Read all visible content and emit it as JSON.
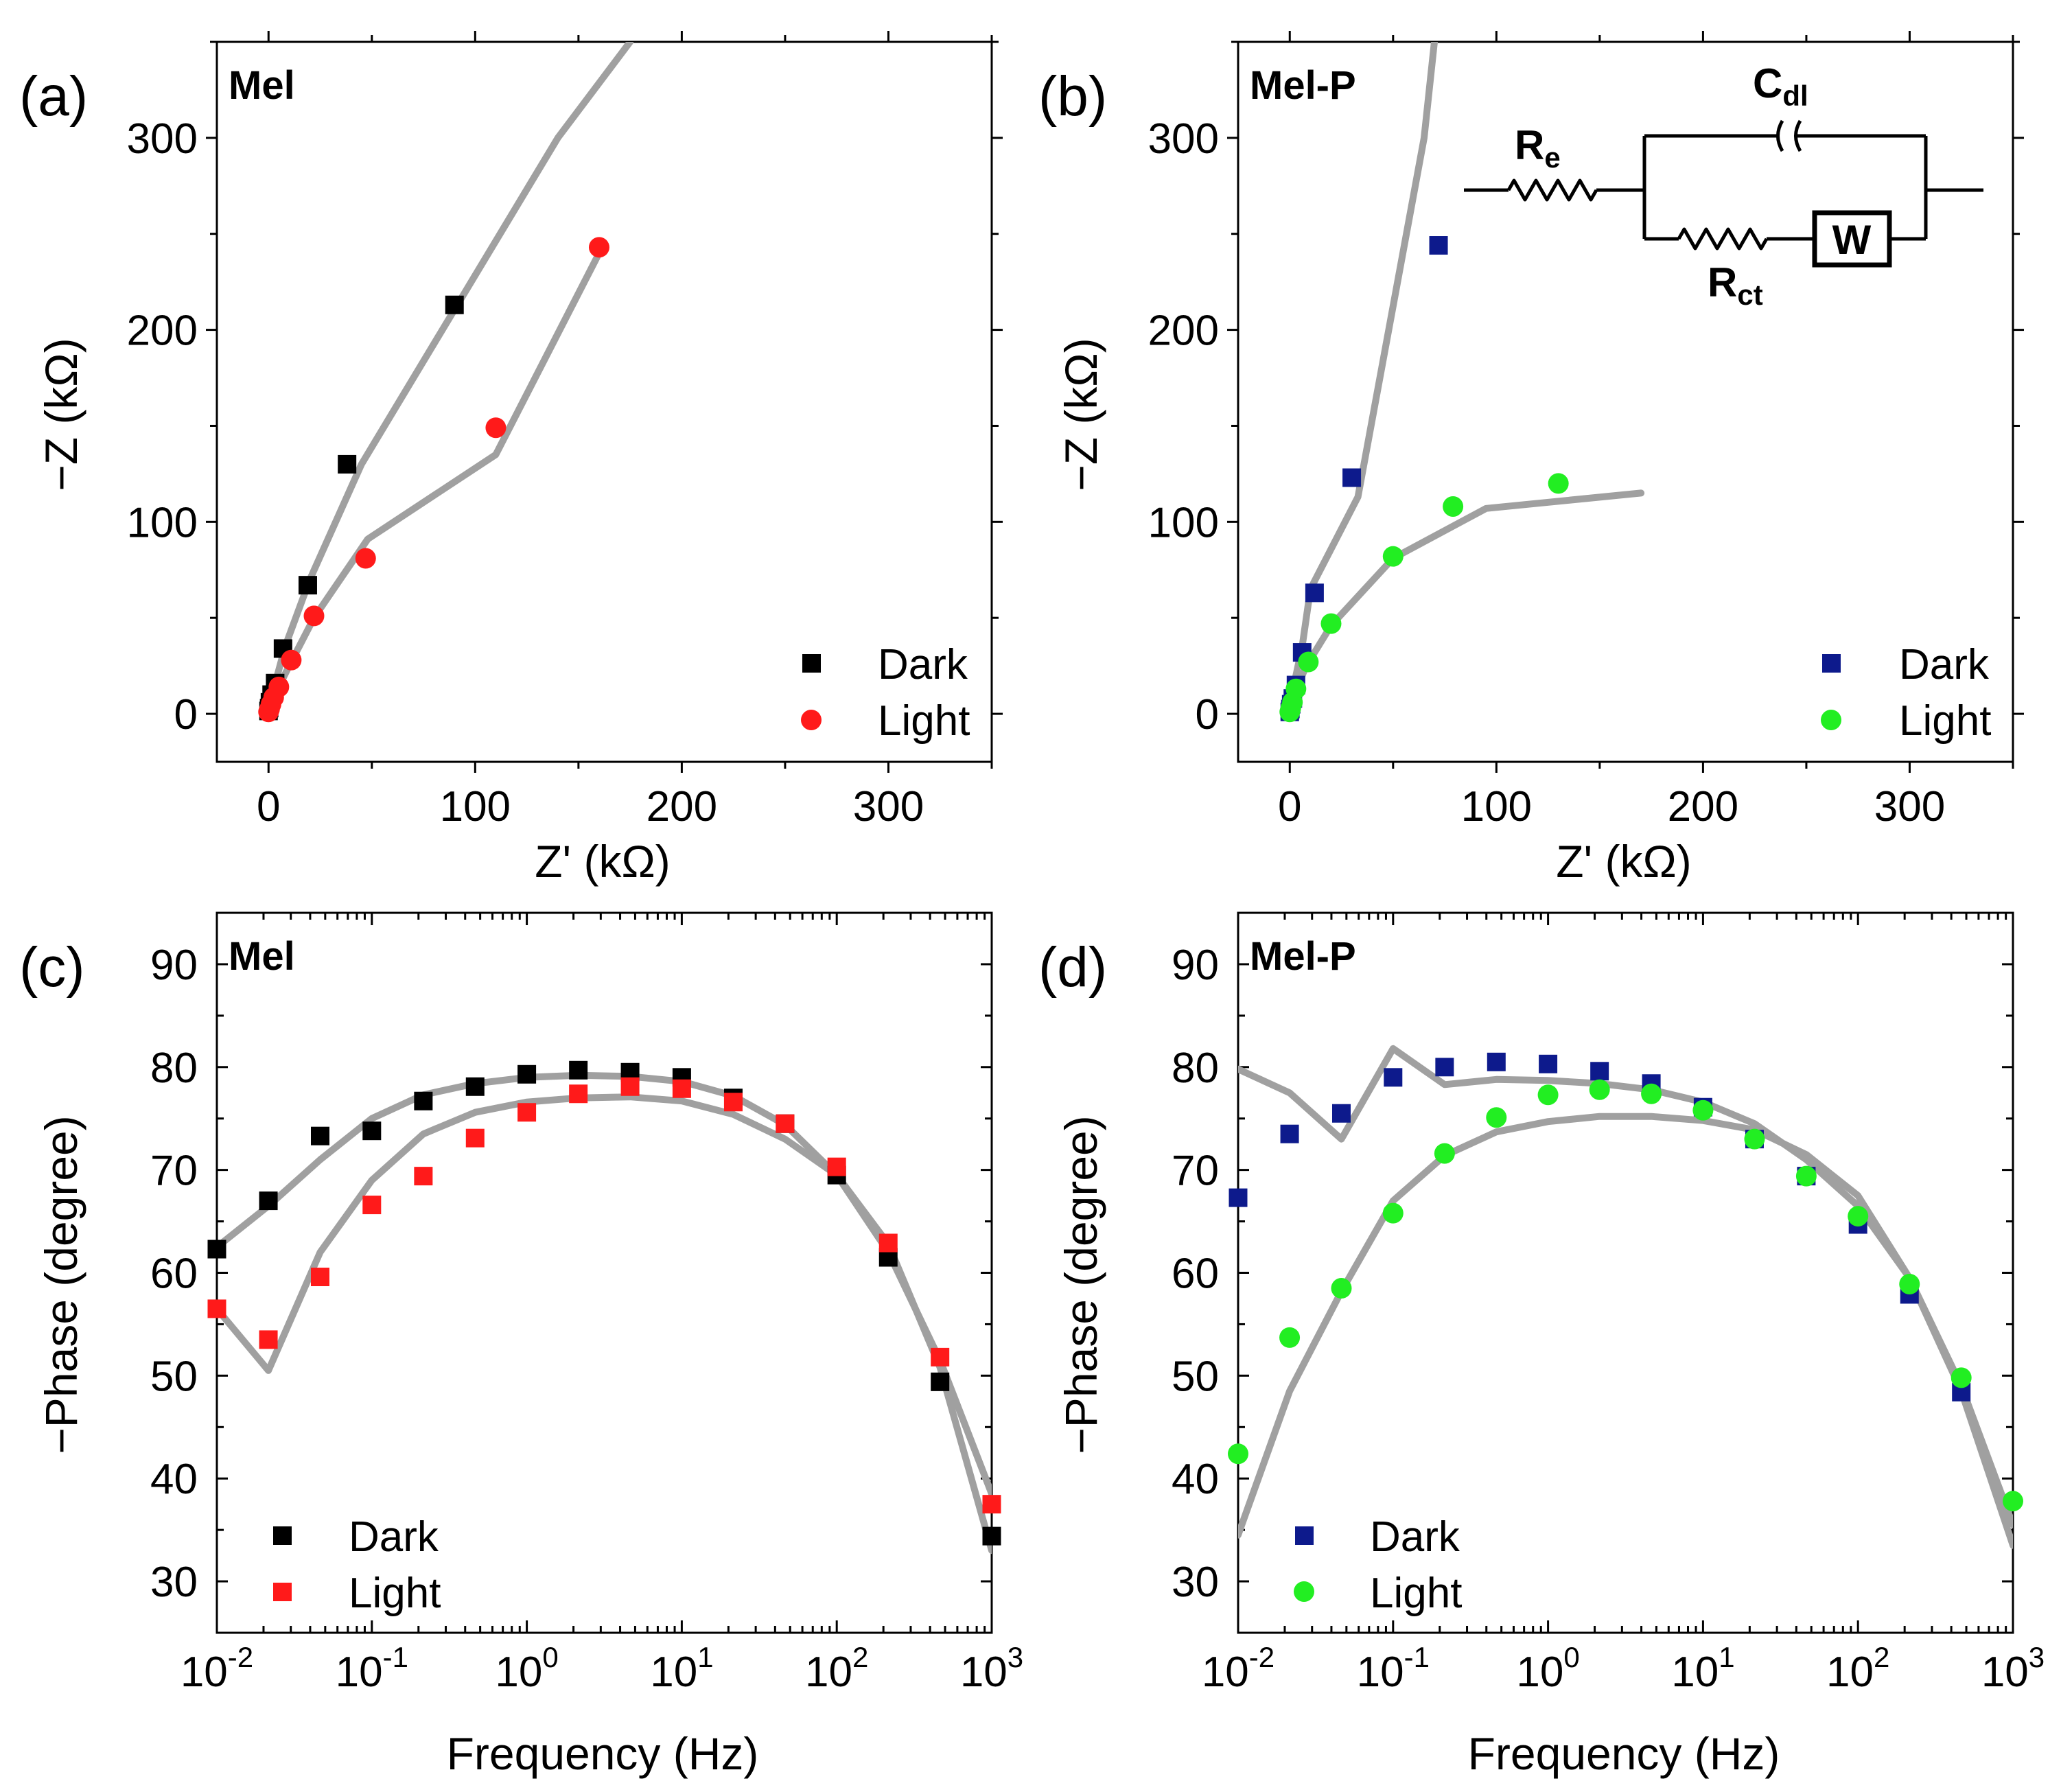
{
  "chart_data": [
    {
      "type": "scatter",
      "panel": "(a)",
      "sample": "Mel",
      "xlabel": "Z' (kΩ)",
      "ylabel": "−Z (kΩ)",
      "xscale": "linear",
      "xlim": [
        -25,
        350
      ],
      "ylim": [
        -25,
        350
      ],
      "xticks": [
        0,
        100,
        200,
        300
      ],
      "yticks": [
        0,
        100,
        200,
        300
      ],
      "xtick_labels": [
        "0",
        "100",
        "200",
        "300"
      ],
      "ytick_labels": [
        "0",
        "100",
        "200",
        "300"
      ],
      "legend_position": "bottom-right",
      "series": [
        {
          "name": "Dark",
          "marker": "square",
          "color": "#000000",
          "x": [
            0,
            0.3,
            0.7,
            1.5,
            3.2,
            7,
            19,
            38,
            90
          ],
          "y": [
            1.5,
            3,
            6,
            10,
            16,
            34,
            67,
            130,
            213
          ]
        },
        {
          "name": "Light",
          "marker": "circle",
          "color": "#ff1a1a",
          "x": [
            0,
            0.5,
            1.2,
            2.5,
            5,
            11,
            22,
            47,
            110,
            160
          ],
          "y": [
            1,
            2.5,
            5,
            8.5,
            14,
            28,
            51,
            81,
            149,
            243
          ]
        }
      ],
      "fits": [
        {
          "name": "Dark fit",
          "color": "#a0a0a0",
          "x": [
            0,
            1,
            3,
            8,
            20,
            45,
            140,
            175
          ],
          "y": [
            0,
            6,
            15,
            35,
            70,
            130,
            300,
            350
          ]
        },
        {
          "name": "Light fit",
          "color": "#a0a0a0",
          "x": [
            0,
            1,
            4,
            10,
            22,
            48,
            110,
            160
          ],
          "y": [
            0,
            5,
            12,
            25,
            50,
            91,
            135,
            240
          ]
        }
      ]
    },
    {
      "type": "scatter",
      "panel": "(b)",
      "sample": "Mel-P",
      "xlabel": "Z' (kΩ)",
      "ylabel": "−Z (kΩ)",
      "xscale": "linear",
      "xlim": [
        -25,
        350
      ],
      "ylim": [
        -25,
        350
      ],
      "xticks": [
        0,
        100,
        200,
        300
      ],
      "yticks": [
        0,
        100,
        200,
        300
      ],
      "xtick_labels": [
        "0",
        "100",
        "200",
        "300"
      ],
      "ytick_labels": [
        "0",
        "100",
        "200",
        "300"
      ],
      "legend_position": "bottom-right",
      "series": [
        {
          "name": "Dark",
          "marker": "square",
          "color": "#0d1a8c",
          "x": [
            0,
            0.3,
            0.7,
            1.5,
            3,
            6,
            12,
            30,
            72
          ],
          "y": [
            1,
            2.5,
            5,
            8,
            15,
            32,
            63,
            123,
            244
          ]
        },
        {
          "name": "Light",
          "marker": "circle",
          "color": "#22ee22",
          "x": [
            0,
            0.5,
            1.3,
            3,
            9,
            20,
            50,
            79,
            130
          ],
          "y": [
            1,
            3,
            6,
            13,
            27,
            47,
            82,
            108,
            120
          ]
        }
      ],
      "fits": [
        {
          "name": "Dark fit",
          "color": "#a0a0a0",
          "x": [
            0,
            2,
            6,
            10,
            33,
            65,
            70
          ],
          "y": [
            0,
            15,
            35,
            65,
            113,
            300,
            350
          ]
        },
        {
          "name": "Light fit",
          "color": "#a0a0a0",
          "x": [
            0,
            2,
            8,
            20,
            50,
            95,
            170
          ],
          "y": [
            0,
            10,
            25,
            46,
            81,
            107,
            115
          ]
        }
      ],
      "inset_circuit": {
        "resistor_label": "R",
        "resistor_sub": "e",
        "capacitor_label": "C",
        "capacitor_sub": "dl",
        "transfer_label": "R",
        "transfer_sub": "ct",
        "warburg_label": "W"
      }
    },
    {
      "type": "scatter",
      "panel": "(c)",
      "sample": "Mel",
      "xlabel": "Frequency (Hz)",
      "ylabel": "−Phase (degree)",
      "xscale": "log",
      "xlim": [
        0.01,
        1000
      ],
      "ylim": [
        25,
        95
      ],
      "yticks": [
        30,
        40,
        50,
        60,
        70,
        80,
        90
      ],
      "ytick_labels": [
        "30",
        "40",
        "50",
        "60",
        "70",
        "80",
        "90"
      ],
      "xtick_labels": [
        {
          "base": "10",
          "exp": "-2"
        },
        {
          "base": "10",
          "exp": "-1"
        },
        {
          "base": "10",
          "exp": "0"
        },
        {
          "base": "10",
          "exp": "1"
        },
        {
          "base": "10",
          "exp": "2"
        },
        {
          "base": "10",
          "exp": "3"
        }
      ],
      "legend_position": "bottom-left",
      "series": [
        {
          "name": "Dark",
          "marker": "square",
          "color": "#000000",
          "x": [
            0.01,
            0.0215,
            0.0464,
            0.1,
            0.215,
            0.464,
            1,
            2.15,
            4.64,
            10,
            21.5,
            46.4,
            100,
            215,
            464,
            1000
          ],
          "y": [
            62.3,
            67,
            73.3,
            73.8,
            76.7,
            78.1,
            79.3,
            79.7,
            79.5,
            79,
            77,
            74.5,
            69.5,
            61.5,
            49.4,
            34.4
          ]
        },
        {
          "name": "Light",
          "marker": "square",
          "color": "#ff1a1a",
          "x": [
            0.01,
            0.0215,
            0.0464,
            0.1,
            0.215,
            0.464,
            1,
            2.15,
            4.64,
            10,
            21.5,
            46.4,
            100,
            215,
            464,
            1000
          ],
          "y": [
            56.5,
            53.5,
            59.6,
            66.6,
            69.4,
            73.1,
            75.6,
            77.4,
            78.1,
            77.9,
            76.6,
            74.5,
            70.3,
            62.9,
            51.8,
            37.5
          ]
        }
      ],
      "fits": [
        {
          "name": "Dark fit",
          "color": "#a0a0a0",
          "x": [
            0.01,
            0.0215,
            0.0464,
            0.1,
            0.215,
            0.464,
            1,
            2.15,
            4.64,
            10,
            21.5,
            46.4,
            100,
            215,
            464,
            1000
          ],
          "y": [
            62.5,
            66.5,
            71,
            75,
            77.3,
            78.4,
            79,
            79.2,
            79.1,
            78.6,
            77.2,
            74.4,
            69.5,
            62,
            51.5,
            38.5
          ]
        },
        {
          "name": "Light fit",
          "color": "#a0a0a0",
          "x": [
            0.01,
            0.0215,
            0.0464,
            0.1,
            0.215,
            0.464,
            1,
            2.15,
            4.64,
            10,
            21.5,
            46.4,
            100,
            215,
            464,
            1000
          ],
          "y": [
            56.5,
            50.5,
            62,
            69,
            73.5,
            75.6,
            76.6,
            77,
            77.1,
            76.7,
            75.4,
            73,
            69.5,
            62.8,
            50.8,
            33
          ]
        }
      ]
    },
    {
      "type": "scatter",
      "panel": "(d)",
      "sample": "Mel-P",
      "xlabel": "Frequency (Hz)",
      "ylabel": "−Phase (degree)",
      "xscale": "log",
      "xlim": [
        0.01,
        1000
      ],
      "ylim": [
        25,
        95
      ],
      "yticks": [
        30,
        40,
        50,
        60,
        70,
        80,
        90
      ],
      "ytick_labels": [
        "30",
        "40",
        "50",
        "60",
        "70",
        "80",
        "90"
      ],
      "xtick_labels": [
        {
          "base": "10",
          "exp": "-2"
        },
        {
          "base": "10",
          "exp": "-1"
        },
        {
          "base": "10",
          "exp": "0"
        },
        {
          "base": "10",
          "exp": "1"
        },
        {
          "base": "10",
          "exp": "2"
        },
        {
          "base": "10",
          "exp": "3"
        }
      ],
      "legend_position": "bottom-left",
      "series": [
        {
          "name": "Dark",
          "marker": "square",
          "color": "#0d1a8c",
          "x": [
            0.01,
            0.0215,
            0.0464,
            0.1,
            0.215,
            0.464,
            1,
            2.15,
            4.64,
            10,
            21.5,
            46.4,
            100,
            215,
            464
          ],
          "y": [
            67.3,
            73.5,
            75.5,
            79,
            80,
            80.5,
            80.3,
            79.6,
            78.4,
            76.1,
            73,
            69.4,
            64.7,
            57.9,
            48.4
          ]
        },
        {
          "name": "Light",
          "marker": "circle",
          "color": "#22ee22",
          "x": [
            0.01,
            0.0215,
            0.0464,
            0.1,
            0.215,
            0.464,
            1,
            2.15,
            4.64,
            10,
            21.5,
            46.4,
            100,
            215,
            464,
            1000
          ],
          "y": [
            42.4,
            53.7,
            58.5,
            65.8,
            71.6,
            75.1,
            77.3,
            77.8,
            77.4,
            75.8,
            73,
            69.4,
            65.5,
            58.9,
            49.8,
            37.8
          ]
        }
      ],
      "fits": [
        {
          "name": "Dark fit",
          "color": "#a0a0a0",
          "x": [
            0.01,
            0.0215,
            0.0464,
            0.1,
            0.215,
            0.464,
            1,
            2.15,
            4.64,
            10,
            21.5,
            46.4,
            100,
            215,
            464,
            1000
          ],
          "y": [
            79.8,
            77.5,
            73,
            81.8,
            78.3,
            78.8,
            78.7,
            78.4,
            77.8,
            76.6,
            74.5,
            71,
            66.5,
            59.5,
            48.5,
            33.5
          ]
        },
        {
          "name": "Light fit",
          "color": "#a0a0a0",
          "x": [
            0.01,
            0.0215,
            0.0464,
            0.1,
            0.215,
            0.464,
            1,
            2.15,
            4.64,
            10,
            21.5,
            46.4,
            100,
            215,
            464,
            1000
          ],
          "y": [
            34.5,
            48.5,
            58.2,
            67,
            71.4,
            73.7,
            74.7,
            75.2,
            75.2,
            74.8,
            73.9,
            71.5,
            67.5,
            59.5,
            49,
            35.5
          ]
        }
      ]
    }
  ]
}
